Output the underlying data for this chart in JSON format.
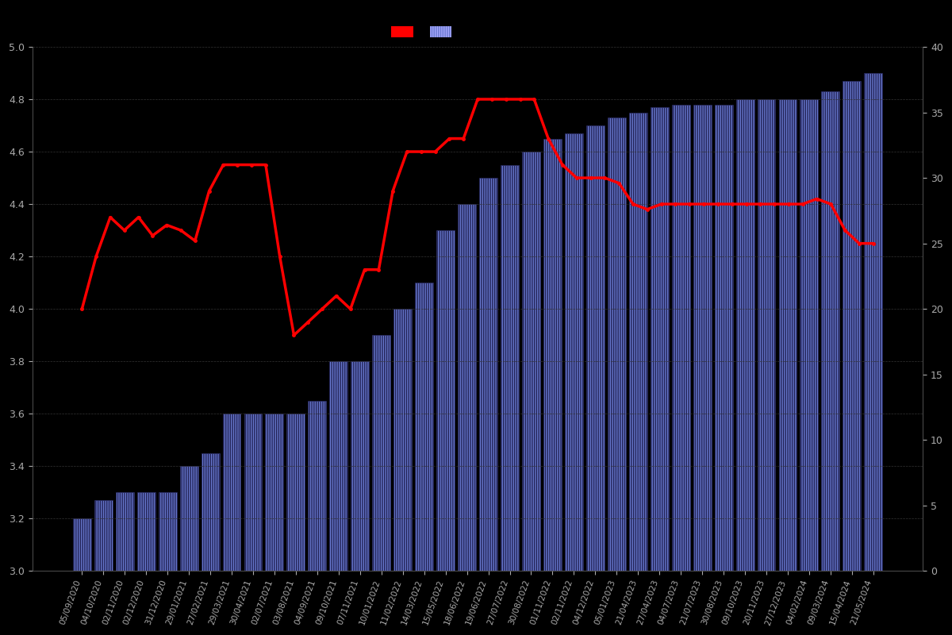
{
  "background_color": "#000000",
  "text_color": "#aaaaaa",
  "bar_facecolor": "#6677cc",
  "bar_edgecolor": "#222255",
  "line_color": "#ff0000",
  "dot_color": "#ff0000",
  "ylim_left": [
    3.0,
    5.0
  ],
  "ylim_right": [
    0,
    40
  ],
  "dates": [
    "05/09/2020",
    "04/10/2020",
    "02/11/2020",
    "02/12/2020",
    "31/12/2020",
    "29/01/2021",
    "27/02/2021",
    "29/03/2021",
    "30/04/2021",
    "02/07/2021",
    "03/08/2021",
    "04/09/2021",
    "09/10/2021",
    "07/11/2021",
    "10/01/2022",
    "11/02/2022",
    "14/03/2022",
    "15/05/2022",
    "18/06/2022",
    "19/06/2022",
    "27/07/2022",
    "30/08/2022",
    "01/11/2022",
    "02/11/2022",
    "04/12/2022",
    "05/01/2023",
    "21/04/2023",
    "27/04/2023",
    "04/07/2023",
    "21/07/2023",
    "30/08/2023",
    "09/10/2023",
    "20/11/2023",
    "27/12/2023",
    "04/02/2024",
    "09/03/2024",
    "15/04/2024",
    "21/05/2024"
  ],
  "bar_heights": [
    3.2,
    3.27,
    3.3,
    3.3,
    3.3,
    3.4,
    3.45,
    3.6,
    3.6,
    3.6,
    3.6,
    3.65,
    3.8,
    3.8,
    3.9,
    4.0,
    4.1,
    4.3,
    4.4,
    4.5,
    4.55,
    4.6,
    4.65,
    4.67,
    4.7,
    4.73,
    4.75,
    4.77,
    4.78,
    4.78,
    4.78,
    4.8,
    4.8,
    4.8,
    4.8,
    4.83,
    4.87,
    4.9
  ],
  "line_values": [
    4.0,
    4.2,
    4.35,
    4.3,
    4.35,
    4.28,
    4.32,
    4.3,
    4.26,
    4.45,
    4.55,
    4.55,
    4.55,
    4.55,
    4.2,
    3.9,
    3.95,
    4.0,
    4.05,
    4.0,
    4.15,
    4.15,
    4.45,
    4.6,
    4.6,
    4.6,
    4.65,
    4.65,
    4.8,
    4.8,
    4.8,
    4.8,
    4.8,
    4.65,
    4.55,
    4.5,
    4.5,
    4.5,
    4.48,
    4.4,
    4.38,
    4.4,
    4.4,
    4.4,
    4.4,
    4.4,
    4.4,
    4.4,
    4.4,
    4.4,
    4.4,
    4.4,
    4.42,
    4.4,
    4.3,
    4.25,
    4.25
  ],
  "right_ticks": [
    0,
    5,
    10,
    15,
    20,
    25,
    30,
    35,
    40
  ],
  "left_ticks": [
    3.0,
    3.2,
    3.4,
    3.6,
    3.8,
    4.0,
    4.2,
    4.4,
    4.6,
    4.8,
    5.0
  ],
  "grid_color": "#333333",
  "spine_color": "#555555"
}
